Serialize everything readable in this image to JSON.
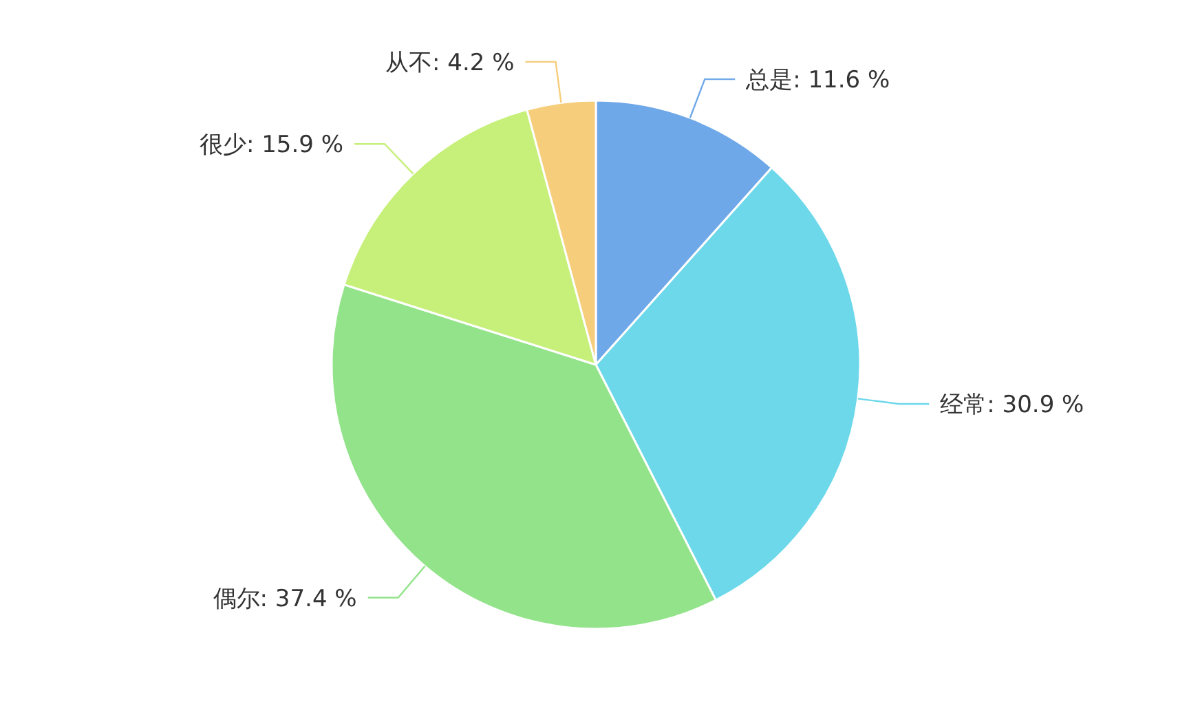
{
  "chart_data": {
    "type": "pie",
    "categories": [
      "总是",
      "经常",
      "偶尔",
      "很少",
      "从不"
    ],
    "values": [
      11.6,
      30.9,
      37.4,
      15.9,
      4.2
    ],
    "value_labels": [
      "11.6 %",
      "30.9 %",
      "37.4 %",
      "15.9 %",
      "4.2 %"
    ],
    "colors": [
      "#6fa8e8",
      "#6dd8ea",
      "#92e38a",
      "#c6f07a",
      "#f6cd7a"
    ],
    "legend": false
  }
}
